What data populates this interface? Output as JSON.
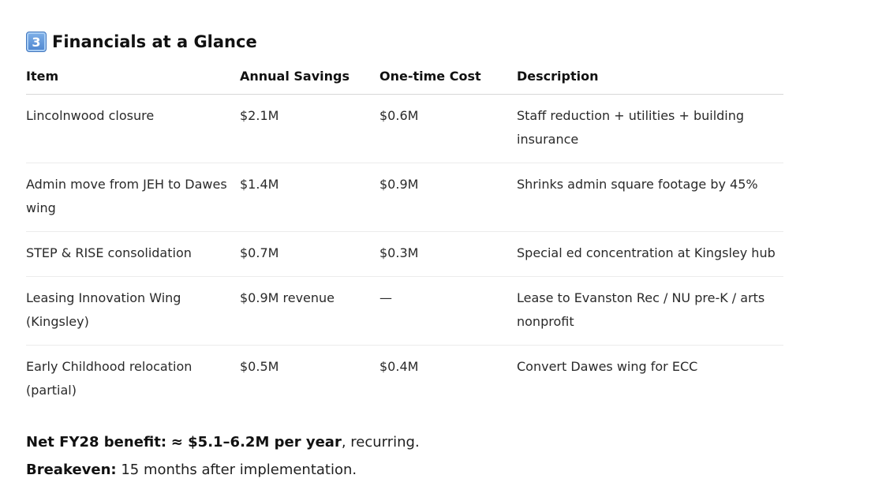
{
  "section": {
    "number_emoji": "3",
    "title": "Financials at a Glance"
  },
  "table": {
    "headers": [
      "Item",
      "Annual Savings",
      "One-time Cost",
      "Description"
    ],
    "rows": [
      {
        "item": "Lincolnwood closure",
        "annual_savings": "$2.1M",
        "one_time_cost": "$0.6M",
        "description": "Staff reduction + utilities + building insurance"
      },
      {
        "item": "Admin move from JEH to Dawes wing",
        "annual_savings": "$1.4M",
        "one_time_cost": "$0.9M",
        "description": "Shrinks admin square footage by 45%"
      },
      {
        "item": "STEP & RISE consolidation",
        "annual_savings": "$0.7M",
        "one_time_cost": "$0.3M",
        "description": "Special ed concentration at Kingsley hub"
      },
      {
        "item": "Leasing Innovation Wing (Kingsley)",
        "annual_savings": "$0.9M revenue",
        "one_time_cost": "—",
        "description": "Lease to Evanston Rec / NU pre-K / arts nonprofit"
      },
      {
        "item": "Early Childhood relocation (partial)",
        "annual_savings": "$0.5M",
        "one_time_cost": "$0.4M",
        "description": "Convert Dawes wing for ECC"
      }
    ]
  },
  "summary": {
    "net_label": "Net FY28 benefit:",
    "net_value": "≈ $5.1–6.2M per year",
    "net_suffix": ", recurring.",
    "breakeven_label": "Breakeven:",
    "breakeven_text": " 15 months after implementation."
  }
}
